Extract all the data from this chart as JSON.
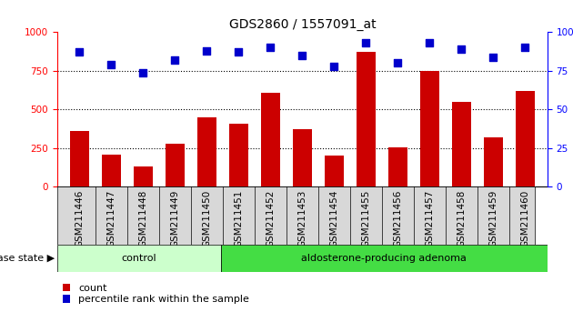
{
  "title": "GDS2860 / 1557091_at",
  "categories": [
    "GSM211446",
    "GSM211447",
    "GSM211448",
    "GSM211449",
    "GSM211450",
    "GSM211451",
    "GSM211452",
    "GSM211453",
    "GSM211454",
    "GSM211455",
    "GSM211456",
    "GSM211457",
    "GSM211458",
    "GSM211459",
    "GSM211460"
  ],
  "count_values": [
    360,
    210,
    130,
    280,
    450,
    410,
    610,
    370,
    200,
    870,
    255,
    750,
    550,
    320,
    620
  ],
  "percentile_values": [
    87,
    79,
    74,
    82,
    88,
    87,
    90,
    85,
    78,
    93,
    80,
    93,
    89,
    84,
    90
  ],
  "control_count": 5,
  "bar_color": "#cc0000",
  "dot_color": "#0000cc",
  "control_color": "#ccffcc",
  "adenoma_color": "#44dd44",
  "ylim_left": [
    0,
    1000
  ],
  "ylim_right": [
    0,
    100
  ],
  "yticks_left": [
    0,
    250,
    500,
    750,
    1000
  ],
  "yticks_right": [
    0,
    25,
    50,
    75,
    100
  ],
  "grid_values": [
    250,
    500,
    750
  ],
  "label_count": "count",
  "label_percentile": "percentile rank within the sample",
  "disease_state_label": "disease state",
  "control_label": "control",
  "adenoma_label": "aldosterone-producing adenoma",
  "title_fontsize": 10,
  "tick_fontsize": 7.5,
  "label_fontsize": 8
}
